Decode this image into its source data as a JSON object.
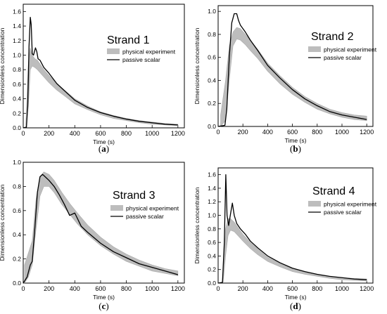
{
  "chart_data": [
    {
      "type": "line",
      "panel_label": "(a)",
      "title": "Strand 1",
      "xlabel": "Time (s)",
      "ylabel": "Dimensionless concentration",
      "xlim": [
        0,
        1250
      ],
      "ylim": [
        0,
        1.7
      ],
      "xticks": [
        0,
        200,
        400,
        600,
        800,
        1000,
        1200
      ],
      "yticks": [
        0.0,
        0.2,
        0.4,
        0.6,
        0.8,
        1.0,
        1.2,
        1.4,
        1.6
      ],
      "ytick_labels": [
        "0.0",
        "0.2",
        "0.4",
        "0.6",
        "0.8",
        "1.0",
        "1.2",
        "1.4",
        "1.6"
      ],
      "legend": {
        "position": "top-right",
        "entries": [
          "physical experiment",
          "passive scalar"
        ]
      },
      "series": [
        {
          "name": "physical experiment",
          "style": "band",
          "x": [
            20,
            40,
            55,
            70,
            90,
            110,
            130,
            160,
            200,
            260,
            320,
            400,
            500,
            600,
            700,
            800,
            900,
            1000,
            1100,
            1200
          ],
          "upper": [
            0.05,
            0.9,
            1.1,
            1.0,
            0.95,
            0.93,
            0.88,
            0.8,
            0.72,
            0.61,
            0.52,
            0.4,
            0.3,
            0.22,
            0.17,
            0.13,
            0.1,
            0.08,
            0.06,
            0.05
          ],
          "lower": [
            0.0,
            0.3,
            0.8,
            0.85,
            0.83,
            0.8,
            0.76,
            0.7,
            0.62,
            0.52,
            0.44,
            0.33,
            0.25,
            0.18,
            0.13,
            0.1,
            0.07,
            0.05,
            0.04,
            0.03
          ]
        },
        {
          "name": "passive scalar",
          "style": "line",
          "x": [
            0,
            25,
            35,
            45,
            55,
            62,
            70,
            80,
            95,
            105,
            115,
            130,
            160,
            200,
            260,
            320,
            400,
            500,
            600,
            700,
            800,
            900,
            1000,
            1100,
            1200
          ],
          "y": [
            0.0,
            0.01,
            0.3,
            1.12,
            1.52,
            1.42,
            1.02,
            1.0,
            1.1,
            1.05,
            0.95,
            0.93,
            0.83,
            0.75,
            0.61,
            0.51,
            0.38,
            0.28,
            0.21,
            0.16,
            0.12,
            0.09,
            0.07,
            0.05,
            0.04
          ]
        }
      ]
    },
    {
      "type": "line",
      "panel_label": "(b)",
      "title": "Strand 2",
      "xlabel": "Time (s)",
      "ylabel": "Dimensionless concentration",
      "xlim": [
        0,
        1250
      ],
      "ylim": [
        0,
        1.05
      ],
      "xticks": [
        0,
        200,
        400,
        600,
        800,
        1000,
        1200
      ],
      "yticks": [
        0.0,
        0.2,
        0.4,
        0.6,
        0.8,
        1.0
      ],
      "ytick_labels": [
        "0.0",
        "0.2",
        "0.4",
        "0.6",
        "0.8",
        "1.0"
      ],
      "legend": {
        "position": "top-right",
        "entries": [
          "physical experiment",
          "passive scalar"
        ]
      },
      "series": [
        {
          "name": "physical experiment",
          "style": "band",
          "x": [
            20,
            60,
            90,
            120,
            150,
            180,
            220,
            260,
            320,
            400,
            500,
            600,
            700,
            800,
            900,
            1000,
            1100,
            1200
          ],
          "upper": [
            0.1,
            0.4,
            0.7,
            0.82,
            0.86,
            0.85,
            0.8,
            0.75,
            0.67,
            0.55,
            0.44,
            0.34,
            0.26,
            0.2,
            0.15,
            0.12,
            0.1,
            0.09
          ],
          "lower": [
            0.0,
            0.05,
            0.4,
            0.7,
            0.76,
            0.75,
            0.71,
            0.66,
            0.59,
            0.48,
            0.37,
            0.28,
            0.21,
            0.15,
            0.11,
            0.08,
            0.06,
            0.05
          ]
        },
        {
          "name": "passive scalar",
          "style": "line",
          "x": [
            0,
            55,
            70,
            90,
            110,
            130,
            150,
            165,
            180,
            220,
            260,
            320,
            400,
            500,
            600,
            700,
            800,
            900,
            1000,
            1100,
            1200
          ],
          "y": [
            0.0,
            0.01,
            0.15,
            0.6,
            0.9,
            0.98,
            0.98,
            0.92,
            0.88,
            0.82,
            0.75,
            0.66,
            0.53,
            0.42,
            0.32,
            0.24,
            0.18,
            0.13,
            0.1,
            0.08,
            0.06
          ]
        }
      ]
    },
    {
      "type": "line",
      "panel_label": "(c)",
      "title": "Strand 3",
      "xlabel": "Time (s)",
      "ylabel": "Dimensionless concentration",
      "xlim": [
        0,
        1250
      ],
      "ylim": [
        0,
        1.0
      ],
      "xticks": [
        0,
        200,
        400,
        600,
        800,
        1000,
        1200
      ],
      "yticks": [
        0.0,
        0.2,
        0.4,
        0.6,
        0.8,
        1.0
      ],
      "ytick_labels": [
        "0.0",
        "0.2",
        "0.4",
        "0.6",
        "0.8",
        "1.0"
      ],
      "legend": {
        "position": "top-right",
        "entries": [
          "physical experiment",
          "passive scalar"
        ]
      },
      "series": [
        {
          "name": "physical experiment",
          "style": "band",
          "x": [
            10,
            40,
            70,
            100,
            130,
            160,
            200,
            240,
            300,
            360,
            420,
            500,
            600,
            700,
            800,
            900,
            1000,
            1100,
            1200
          ],
          "upper": [
            0.15,
            0.25,
            0.35,
            0.7,
            0.88,
            0.92,
            0.9,
            0.85,
            0.75,
            0.66,
            0.58,
            0.48,
            0.38,
            0.3,
            0.24,
            0.19,
            0.15,
            0.12,
            0.1
          ],
          "lower": [
            0.0,
            0.05,
            0.15,
            0.45,
            0.72,
            0.8,
            0.8,
            0.75,
            0.65,
            0.57,
            0.49,
            0.4,
            0.31,
            0.24,
            0.18,
            0.14,
            0.1,
            0.08,
            0.06
          ]
        },
        {
          "name": "passive scalar",
          "style": "line",
          "x": [
            0,
            30,
            55,
            70,
            90,
            110,
            130,
            150,
            170,
            200,
            240,
            280,
            320,
            360,
            400,
            450,
            500,
            600,
            700,
            800,
            900,
            1000,
            1100,
            1200
          ],
          "y": [
            0.0,
            0.05,
            0.15,
            0.18,
            0.45,
            0.75,
            0.88,
            0.9,
            0.88,
            0.85,
            0.8,
            0.73,
            0.65,
            0.56,
            0.58,
            0.47,
            0.42,
            0.33,
            0.26,
            0.21,
            0.16,
            0.13,
            0.1,
            0.07
          ]
        }
      ]
    },
    {
      "type": "line",
      "panel_label": "(d)",
      "title": "Strand 4",
      "xlabel": "Time (s)",
      "ylabel": "Dimensionless concentration",
      "xlim": [
        0,
        1250
      ],
      "ylim": [
        0,
        1.7
      ],
      "xticks": [
        0,
        200,
        400,
        600,
        800,
        1000,
        1200
      ],
      "yticks": [
        0.0,
        0.2,
        0.4,
        0.6,
        0.8,
        1.0,
        1.2,
        1.4,
        1.6
      ],
      "ytick_labels": [
        "0.0",
        "0.2",
        "0.4",
        "0.6",
        "0.8",
        "1.0",
        "1.2",
        "1.4",
        "1.6"
      ],
      "legend": {
        "position": "top-right",
        "entries": [
          "physical experiment",
          "passive scalar"
        ]
      },
      "series": [
        {
          "name": "physical experiment",
          "style": "band",
          "x": [
            40,
            60,
            80,
            100,
            130,
            160,
            200,
            260,
            320,
            400,
            500,
            600,
            700,
            800,
            900,
            1000,
            1100,
            1200
          ],
          "upper": [
            0.05,
            0.8,
            0.95,
            0.95,
            0.9,
            0.82,
            0.72,
            0.6,
            0.5,
            0.38,
            0.29,
            0.21,
            0.16,
            0.12,
            0.1,
            0.08,
            0.07,
            0.06
          ],
          "lower": [
            0.0,
            0.4,
            0.7,
            0.78,
            0.76,
            0.7,
            0.62,
            0.51,
            0.42,
            0.32,
            0.24,
            0.17,
            0.13,
            0.1,
            0.07,
            0.05,
            0.04,
            0.03
          ]
        },
        {
          "name": "passive scalar",
          "style": "line",
          "x": [
            0,
            35,
            50,
            62,
            72,
            85,
            100,
            115,
            130,
            150,
            180,
            220,
            260,
            320,
            400,
            500,
            600,
            700,
            800,
            900,
            1000,
            1100,
            1200
          ],
          "y": [
            0.0,
            0.01,
            0.6,
            1.6,
            1.0,
            0.85,
            1.02,
            1.18,
            1.0,
            0.88,
            0.8,
            0.72,
            0.62,
            0.52,
            0.4,
            0.3,
            0.22,
            0.17,
            0.13,
            0.1,
            0.08,
            0.06,
            0.05
          ]
        }
      ]
    }
  ]
}
